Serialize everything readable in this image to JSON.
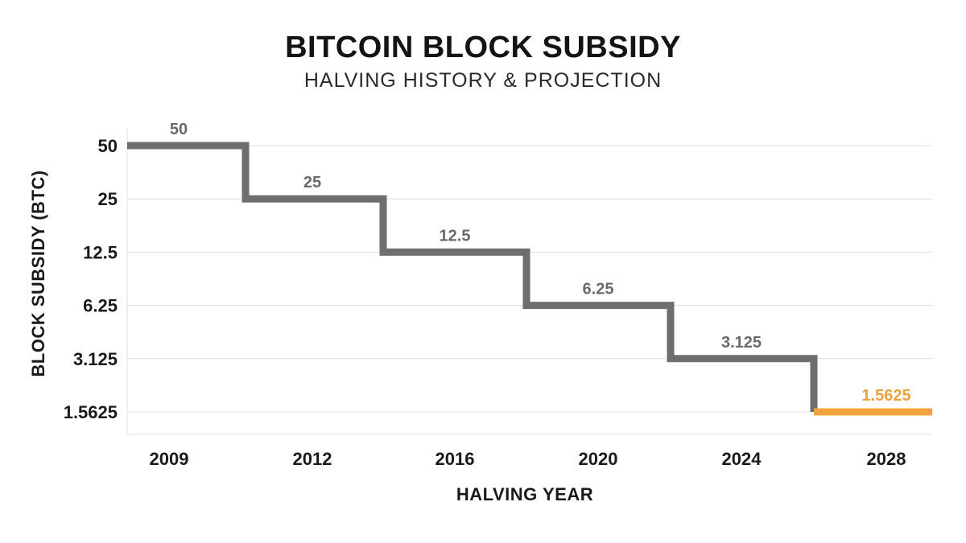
{
  "chart_data": {
    "type": "line",
    "title": "BITCOIN BLOCK SUBSIDY",
    "subtitle": "HALVING HISTORY & PROJECTION",
    "xlabel": "HALVING YEAR",
    "ylabel": "BLOCK SUBSIDY (BTC)",
    "y_scale": "log2",
    "y_ticks": [
      "50",
      "25",
      "12.5",
      "6.25",
      "3.125",
      "1.5625"
    ],
    "x_ticks": [
      "2009",
      "2012",
      "2016",
      "2020",
      "2024",
      "2028"
    ],
    "grid": true,
    "series": [
      {
        "color": "#6e6e6e",
        "points": [
          {
            "x": "2009",
            "y": 50
          },
          {
            "x": "2012",
            "y": 25
          },
          {
            "x": "2016",
            "y": 12.5
          },
          {
            "x": "2020",
            "y": 6.25
          },
          {
            "x": "2024",
            "y": 3.125
          }
        ]
      },
      {
        "color": "#f0a53a",
        "points": [
          {
            "x": "2028",
            "y": 1.5625
          }
        ]
      }
    ],
    "data_labels": [
      "50",
      "25",
      "12.5",
      "6.25",
      "3.125",
      "1.5625"
    ]
  }
}
